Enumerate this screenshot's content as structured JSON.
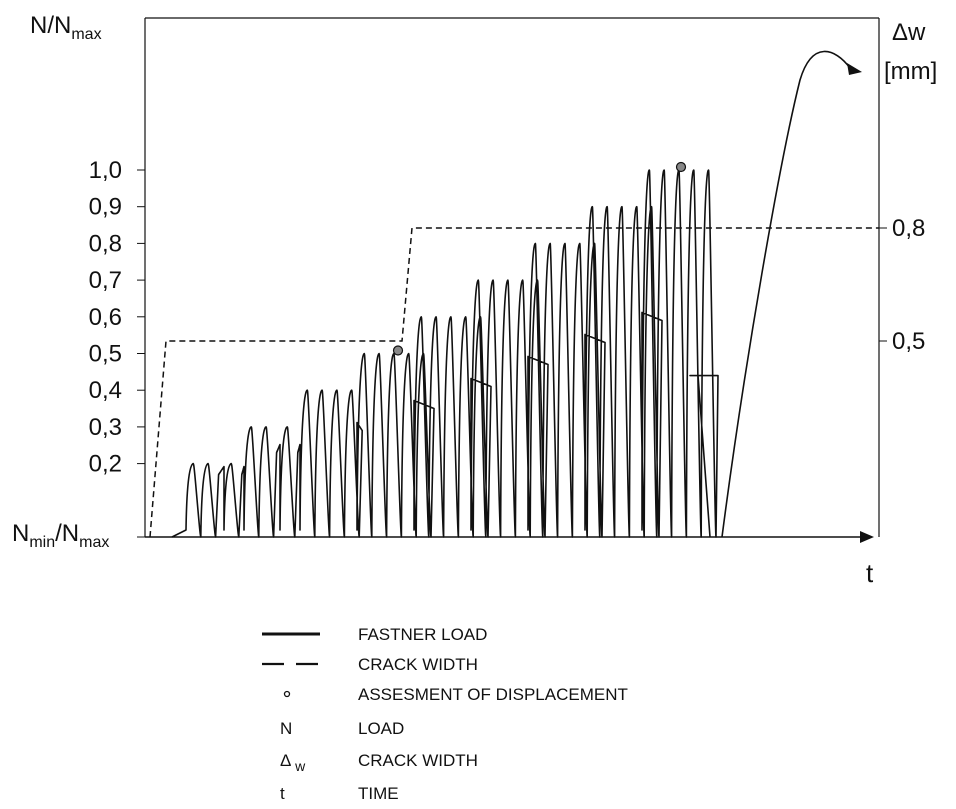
{
  "left_axis": {
    "title": {
      "main": "N/N",
      "sub": "max"
    },
    "ticks": [
      "1,0",
      "0,9",
      "0,8",
      "0,7",
      "0,6",
      "0,5",
      "0,4",
      "0,3",
      "0,2"
    ],
    "baseline_label": {
      "n": "N",
      "n_sub": "min",
      "slash": "/N",
      "max_sub": "max"
    }
  },
  "right_axis": {
    "title_line1": "Δw",
    "title_line2": "[mm]",
    "ticks": [
      "0,8",
      "0,5"
    ]
  },
  "x_axis": {
    "label": "t"
  },
  "legend": [
    {
      "symbol": "solid-line",
      "text": "FASTNER LOAD"
    },
    {
      "symbol": "dashed-line",
      "text": "CRACK WIDTH"
    },
    {
      "symbol": "dot",
      "text": "ASSESMENT OF DISPLACEMENT"
    },
    {
      "symbol": "N",
      "text": "LOAD"
    },
    {
      "symbol": "Δ",
      "symbol_sub": "w",
      "text": "CRACK WIDTH"
    },
    {
      "symbol": "t",
      "text": "TIME"
    }
  ],
  "load_blocks": [
    {
      "peak": 0.2,
      "cycles": 2
    },
    {
      "peak": 0.2,
      "cycles": 1
    },
    {
      "peak": 0.3,
      "cycles": 2
    },
    {
      "peak": 0.3,
      "cycles": 1
    },
    {
      "peak": 0.4,
      "cycles": 4
    },
    {
      "peak": 0.5,
      "cycles": 5
    },
    {
      "peak": 0.6,
      "cycles": 5
    },
    {
      "peak": 0.7,
      "cycles": 5
    },
    {
      "peak": 0.8,
      "cycles": 5
    },
    {
      "peak": 0.9,
      "cycles": 5
    },
    {
      "peak": 1.0,
      "cycles": 5
    }
  ],
  "crack_width_levels": [
    0.5,
    0.8
  ],
  "assessment_points_at_load": [
    0.5,
    1.0
  ]
}
